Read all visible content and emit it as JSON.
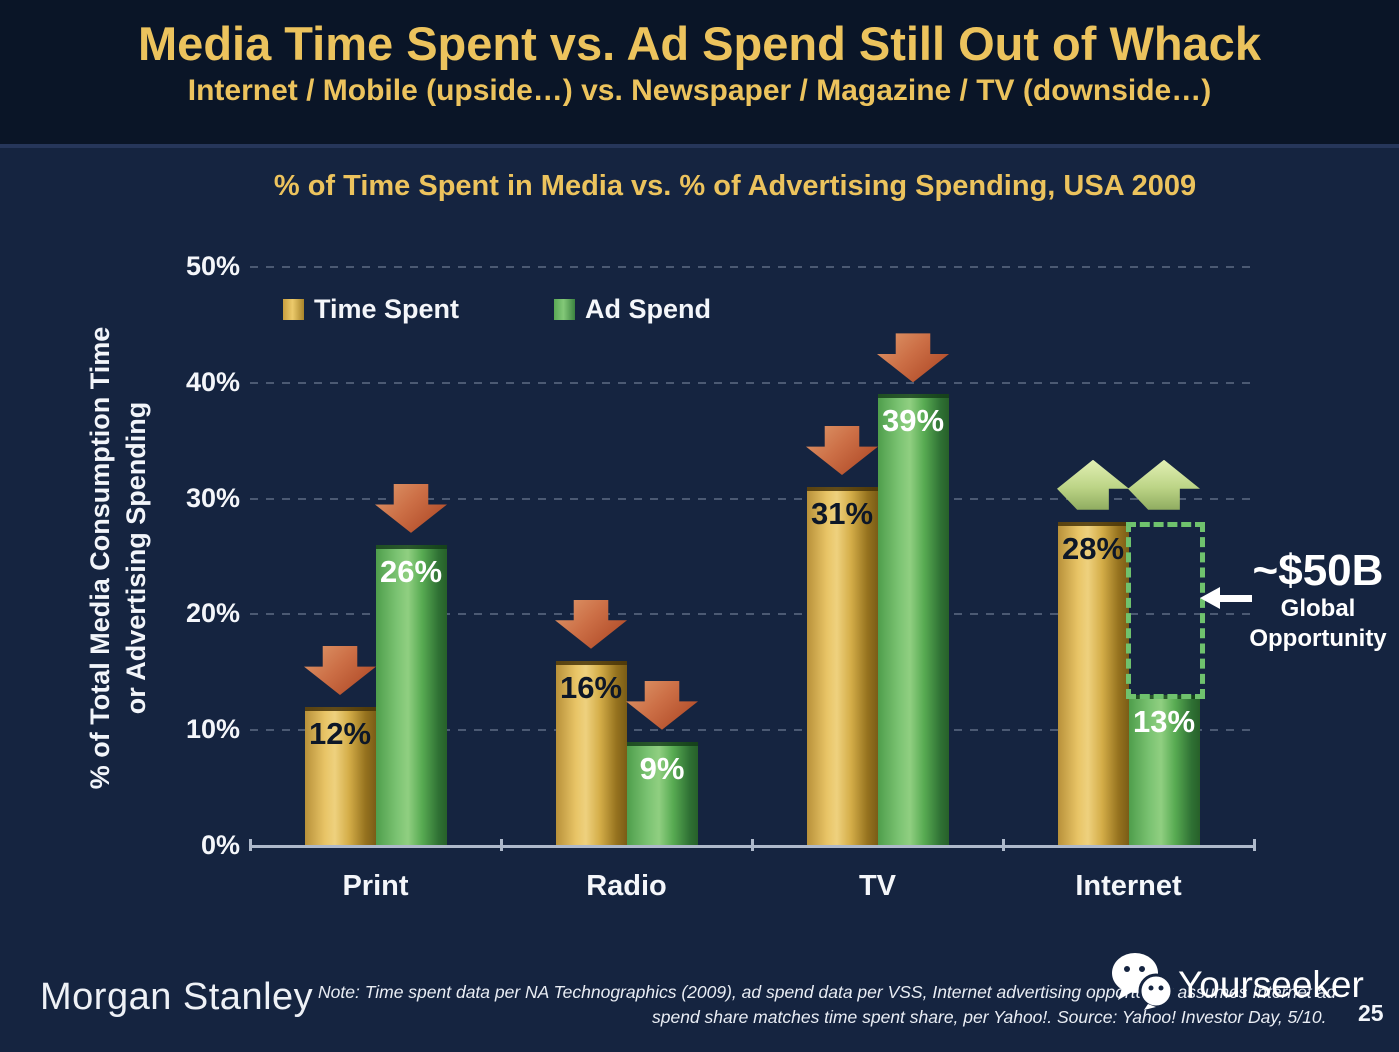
{
  "slide": {
    "title": "Media Time Spent vs. Ad Spend Still Out of Whack",
    "subtitle": "Internet / Mobile (upside…) vs. Newspaper / Magazine / TV (downside…)",
    "page_number": "25"
  },
  "chart_data": {
    "type": "bar",
    "title": "% of Time Spent in Media vs. % of Advertising Spending, USA 2009",
    "ylabel_line1": "% of Total Media Consumption Time",
    "ylabel_line2": "or Advertising Spending",
    "ylim": [
      0,
      50
    ],
    "yticks": [
      "0%",
      "10%",
      "20%",
      "30%",
      "40%",
      "50%"
    ],
    "grid": "dashed horizontal gridlines every 10%",
    "legend_position": "top-left inside plot",
    "categories": [
      "Print",
      "Radio",
      "TV",
      "Internet"
    ],
    "series": [
      {
        "name": "Time Spent",
        "color": "#D9B04C",
        "values": [
          12,
          16,
          31,
          28
        ],
        "labels": [
          "12%",
          "16%",
          "31%",
          "28%"
        ]
      },
      {
        "name": "Ad Spend",
        "color": "#5FAE57",
        "values": [
          26,
          9,
          39,
          13
        ],
        "labels": [
          "26%",
          "9%",
          "39%",
          "13%"
        ]
      }
    ],
    "trend_arrows": [
      "down",
      "down",
      "down",
      "up"
    ],
    "annotation": {
      "headline": "~$50B",
      "line1": "Global",
      "line2": "Opportunity",
      "applies_to_category": "Internet",
      "box_range_pct": [
        13,
        28
      ]
    }
  },
  "colors": {
    "background": "#152440",
    "title_background": "#0A1527",
    "accent_gold_text": "#ECC35D",
    "bar_gold": "#D9B04C",
    "bar_green": "#5FAE57",
    "arrow_down": "#C2603E",
    "arrow_up": "#BCD486",
    "opportunity_box": "#6FC26D"
  },
  "footer": {
    "brand": "Morgan Stanley",
    "note_line1": "Note: Time spent data per NA Technographics (2009), ad spend data per VSS, Internet advertising opportunity assumes Internet ad",
    "note_line2": "spend share matches time spent share, per Yahoo!. Source: Yahoo! Investor Day, 5/10.",
    "watermark": "Yourseeker",
    "watermark_icon": "wechat-icon"
  }
}
